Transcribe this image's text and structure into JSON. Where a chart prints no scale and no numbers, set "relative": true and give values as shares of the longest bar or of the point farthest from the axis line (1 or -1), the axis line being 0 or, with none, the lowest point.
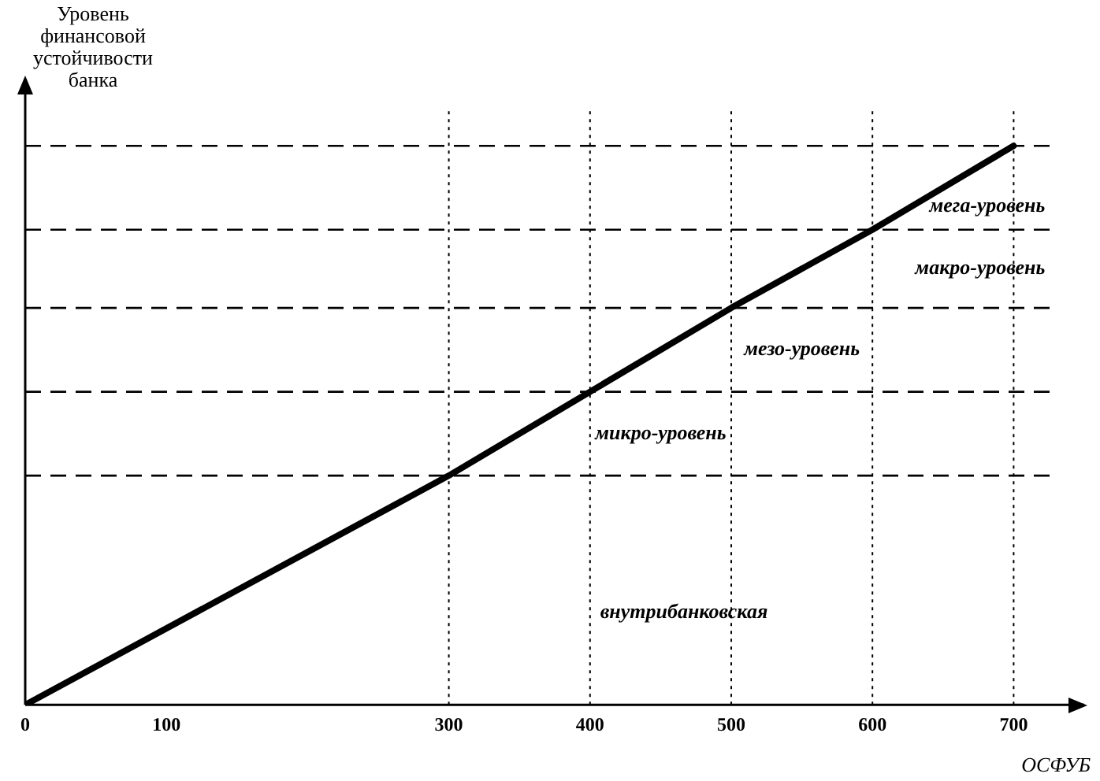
{
  "chart_data": {
    "type": "line",
    "relative": true,
    "xlabel": "ОСФУБ",
    "ylabel": "Уровень финансовой устойчивости банка",
    "series": [
      {
        "x": [
          0,
          300,
          400,
          500,
          600,
          700
        ],
        "values": [
          0,
          0.41,
          0.56,
          0.71,
          0.85,
          1
        ],
        "color": "#000000"
      }
    ],
    "xlim": [
      0,
      750
    ],
    "xticks": [
      0,
      100,
      300,
      400,
      500,
      600,
      700
    ],
    "ref_lines": [
      {
        "axis": "y",
        "value": 0.41,
        "line_style": "dashed"
      },
      {
        "axis": "y",
        "value": 0.56,
        "line_style": "dashed"
      },
      {
        "axis": "y",
        "value": 0.71,
        "line_style": "dashed"
      },
      {
        "axis": "y",
        "value": 0.85,
        "line_style": "dashed"
      },
      {
        "axis": "y",
        "value": 1,
        "line_style": "dashed"
      },
      {
        "axis": "x",
        "value": 300,
        "line_style": "dotted"
      },
      {
        "axis": "x",
        "value": 400,
        "line_style": "dotted"
      },
      {
        "axis": "x",
        "value": 500,
        "line_style": "dotted"
      },
      {
        "axis": "x",
        "value": 600,
        "line_style": "dotted"
      },
      {
        "axis": "x",
        "value": 700,
        "line_style": "dotted"
      }
    ],
    "annotations": [
      "мега-уровень",
      "макро-уровень",
      "мезо-уровень",
      "микро-уровень",
      "внутрибанковская"
    ],
    "grid": false,
    "legend": false,
    "marker": "none",
    "line_style": "solid"
  }
}
